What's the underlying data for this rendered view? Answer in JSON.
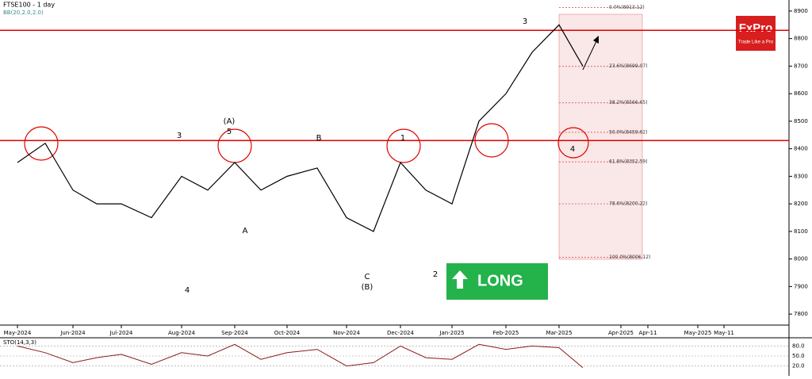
{
  "chart_data": {
    "type": "line",
    "title": "FTSE100 - 1 day",
    "subtitle": "BB(20,2.0,2.0)",
    "brand": "FxPro",
    "brand_tagline": "Trade Like a Pro",
    "signal": "LONG",
    "categories": [
      "May-2024",
      null,
      "Jun-2024",
      null,
      "Jul-2024",
      null,
      "Aug-2024",
      null,
      "Sep-2024",
      null,
      "Oct-2024",
      null,
      "Nov-2024",
      null,
      "Dec-2024",
      null,
      "Jan-2025",
      null,
      "Feb-2025",
      null,
      "Mar-2025",
      null,
      "Apr-2025",
      "Apr-11",
      "May-2025",
      "May-11"
    ],
    "series": [
      {
        "name": "FTSE100",
        "color": "#000000",
        "values": [
          8350,
          8420,
          8250,
          8200,
          8200,
          8150,
          8300,
          8250,
          8350,
          8250,
          8300,
          8330,
          8150,
          8100,
          8350,
          8250,
          8200,
          8500,
          8600,
          8750,
          8850,
          8700,
          null,
          null,
          null,
          null
        ]
      }
    ],
    "ylim": [
      7760,
      8940
    ],
    "yticks": [
      7800,
      7900,
      8000,
      8100,
      8200,
      8300,
      8400,
      8500,
      8600,
      8700,
      8800,
      8900
    ],
    "levels": [
      {
        "value": 8830,
        "color": "#e00000"
      },
      {
        "value": 8430,
        "color": "#e00000"
      }
    ],
    "fibonacci": [
      {
        "value": 8913.12,
        "label": "0.0%(8913.12)"
      },
      {
        "value": 8699.07,
        "label": "23.6%(8699.07)"
      },
      {
        "value": 8566.65,
        "label": "38.2%(8566.65)"
      },
      {
        "value": 8459.62,
        "label": "50.0%(8459.62)"
      },
      {
        "value": 8352.59,
        "label": "61.8%(8352.59)"
      },
      {
        "value": 8200.22,
        "label": "78.6%(8200.22)"
      },
      {
        "value": 8006.12,
        "label": "100.0%(8006.12)"
      }
    ],
    "annotations": [
      "3",
      "(A)",
      "5",
      "B",
      "1",
      "3",
      "4",
      "A",
      "C",
      "(B)",
      "2",
      "4"
    ],
    "oscillator": {
      "title": "STO(14,3,3)",
      "ylim": [
        0,
        100
      ],
      "yticks": [
        {
          "value": 20,
          "label": "20.0"
        },
        {
          "value": 50,
          "label": "50.0"
        },
        {
          "value": 80,
          "label": "80.0"
        }
      ],
      "values": [
        80,
        60,
        30,
        45,
        55,
        25,
        60,
        50,
        85,
        40,
        60,
        70,
        20,
        30,
        80,
        45,
        40,
        85,
        70,
        80,
        75,
        15,
        null,
        null,
        null,
        null
      ]
    }
  }
}
